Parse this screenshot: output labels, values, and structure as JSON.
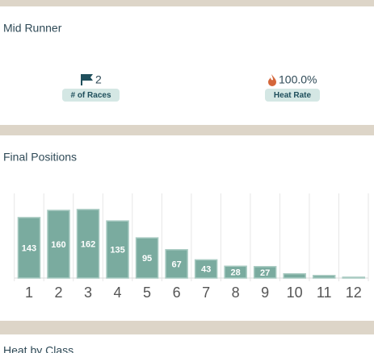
{
  "profile": {
    "title": "Mid Runner",
    "races": "2",
    "races_label": "# of Races",
    "heat_rate": "100.0%",
    "heat_rate_label": "Heat Rate"
  },
  "chart_data": {
    "type": "bar",
    "title": "Final Positions",
    "categories": [
      "1",
      "2",
      "3",
      "4",
      "5",
      "6",
      "7",
      "8",
      "9",
      "10",
      "11",
      "12"
    ],
    "values": [
      143,
      160,
      162,
      135,
      95,
      67,
      43,
      28,
      27,
      10,
      6,
      2
    ],
    "color": "#7aab9f",
    "ylim": [
      0,
      200
    ],
    "grid": true
  },
  "next_section": {
    "title": "Heat by Class"
  }
}
